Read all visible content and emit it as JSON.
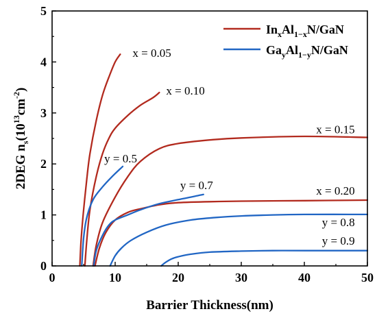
{
  "chart_data": {
    "type": "line",
    "xlabel": "Barrier Thickness(nm)",
    "ylabel": {
      "prefix": "2DEG n",
      "sub": "s",
      "mid": "(10",
      "sup1": "13",
      "mid2": "cm",
      "sup2": "-2",
      "suffix": ")"
    },
    "xlim": [
      0,
      50
    ],
    "ylim": [
      0,
      5
    ],
    "xticks": [
      0,
      10,
      20,
      30,
      40,
      50
    ],
    "yticks": [
      0,
      1,
      2,
      3,
      4,
      5
    ],
    "grid": false,
    "legend_position": "top-right",
    "legend": [
      {
        "base": "In",
        "sub1": "x",
        "mid": "Al",
        "sub2": "1−x",
        "tail": "N/GaN",
        "color": "#b22a1e"
      },
      {
        "base": "Ga",
        "sub1": "y",
        "mid": "Al",
        "sub2": "1−y",
        "tail": "N/GaN",
        "color": "#2166c4"
      }
    ],
    "series": [
      {
        "label": "x = 0.05",
        "color": "#b22a1e",
        "x": [
          4.4,
          4.6,
          5.0,
          5.5,
          6.0,
          7.0,
          8.0,
          9.0,
          10.0,
          10.8
        ],
        "y": [
          0.0,
          0.5,
          1.1,
          1.7,
          2.2,
          2.85,
          3.35,
          3.7,
          4.0,
          4.15
        ]
      },
      {
        "label": "x = 0.10",
        "color": "#b22a1e",
        "x": [
          5.2,
          5.5,
          6.0,
          7.0,
          8.0,
          9.0,
          10.0,
          12.0,
          14.0,
          16.0,
          17.0
        ],
        "y": [
          0.0,
          0.5,
          1.1,
          1.75,
          2.2,
          2.5,
          2.7,
          2.95,
          3.15,
          3.3,
          3.4
        ]
      },
      {
        "label": "x = 0.15",
        "color": "#b22a1e",
        "x": [
          6.5,
          7.0,
          8.0,
          10.0,
          12.0,
          14.0,
          17.0,
          20.0,
          25.0,
          30.0,
          40.0,
          50.0
        ],
        "y": [
          0.0,
          0.4,
          0.85,
          1.35,
          1.75,
          2.05,
          2.3,
          2.4,
          2.47,
          2.51,
          2.54,
          2.52
        ]
      },
      {
        "label": "x = 0.20",
        "color": "#b22a1e",
        "x": [
          6.8,
          7.5,
          8.5,
          10.0,
          12.0,
          14.0,
          17.0,
          20.0,
          25.0,
          30.0,
          40.0,
          50.0
        ],
        "y": [
          0.0,
          0.35,
          0.65,
          0.9,
          1.05,
          1.12,
          1.2,
          1.24,
          1.26,
          1.27,
          1.28,
          1.29
        ]
      },
      {
        "label": "y = 0.5",
        "color": "#2166c4",
        "x": [
          4.7,
          5.0,
          5.5,
          6.5,
          8.0,
          9.5,
          11.2
        ],
        "y": [
          0.0,
          0.55,
          0.95,
          1.3,
          1.55,
          1.75,
          1.95
        ]
      },
      {
        "label": "y = 0.7",
        "color": "#2166c4",
        "x": [
          6.6,
          7.0,
          8.0,
          9.0,
          10.0,
          12.0,
          14.0,
          17.0,
          20.0,
          24.0
        ],
        "y": [
          0.0,
          0.3,
          0.6,
          0.8,
          0.9,
          1.0,
          1.1,
          1.22,
          1.3,
          1.4
        ]
      },
      {
        "label": "y = 0.8",
        "color": "#2166c4",
        "x": [
          9.2,
          10.0,
          11.0,
          12.5,
          15.0,
          18.0,
          22.0,
          26.0,
          30.0,
          35.0,
          40.0,
          50.0
        ],
        "y": [
          0.0,
          0.2,
          0.35,
          0.5,
          0.66,
          0.8,
          0.9,
          0.95,
          0.98,
          1.0,
          1.01,
          1.01
        ]
      },
      {
        "label": "y = 0.9",
        "color": "#2166c4",
        "x": [
          17.3,
          18.0,
          19.0,
          20.0,
          22.0,
          25.0,
          30.0,
          35.0,
          40.0,
          50.0
        ],
        "y": [
          0.0,
          0.07,
          0.14,
          0.18,
          0.23,
          0.27,
          0.29,
          0.3,
          0.3,
          0.3
        ]
      }
    ]
  }
}
